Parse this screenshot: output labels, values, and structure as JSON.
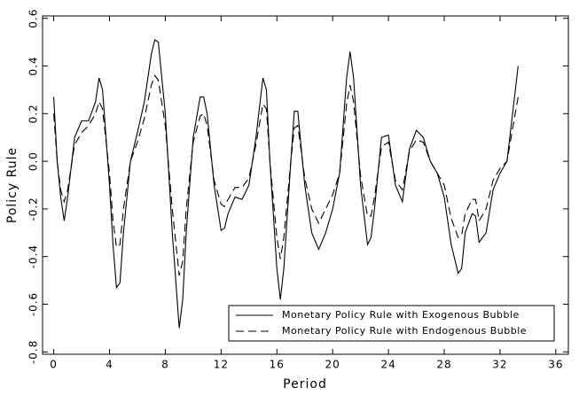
{
  "chart_data": {
    "type": "line",
    "xlabel": "Period",
    "ylabel": "Policy Rule",
    "x": [
      0,
      0.25,
      0.5,
      0.75,
      1,
      1.5,
      2,
      2.5,
      3,
      3.25,
      3.5,
      4,
      4.25,
      4.5,
      4.75,
      5,
      5.5,
      6,
      6.5,
      7,
      7.25,
      7.5,
      8,
      8.5,
      9,
      9.25,
      9.5,
      10,
      10.5,
      10.75,
      11,
      11.5,
      12,
      12.25,
      12.5,
      13,
      13.5,
      14,
      14.5,
      15,
      15.25,
      15.5,
      16,
      16.25,
      16.5,
      17,
      17.25,
      17.5,
      18,
      18.5,
      19,
      19.5,
      20,
      20.5,
      21,
      21.25,
      21.5,
      22,
      22.5,
      22.75,
      23,
      23.5,
      24,
      24.5,
      25,
      25.5,
      26,
      26.5,
      27,
      27.5,
      28,
      28.5,
      29,
      29.25,
      29.5,
      30,
      30.25,
      30.5,
      31,
      31.5,
      32,
      32.5,
      33,
      33.3
    ],
    "series": [
      {
        "name": "Monetary Policy Rule with Exogenous Bubble",
        "color": "#000000",
        "dash": "solid",
        "values": [
          0.27,
          0.0,
          -0.15,
          -0.25,
          -0.15,
          0.1,
          0.17,
          0.17,
          0.25,
          0.35,
          0.3,
          -0.1,
          -0.35,
          -0.53,
          -0.51,
          -0.3,
          0.0,
          0.12,
          0.25,
          0.45,
          0.51,
          0.5,
          0.2,
          -0.3,
          -0.7,
          -0.58,
          -0.3,
          0.1,
          0.27,
          0.27,
          0.2,
          -0.1,
          -0.29,
          -0.28,
          -0.22,
          -0.15,
          -0.16,
          -0.1,
          0.1,
          0.35,
          0.3,
          0.0,
          -0.45,
          -0.58,
          -0.45,
          0.0,
          0.21,
          0.21,
          -0.1,
          -0.3,
          -0.37,
          -0.3,
          -0.2,
          -0.05,
          0.35,
          0.46,
          0.35,
          -0.1,
          -0.35,
          -0.32,
          -0.2,
          0.1,
          0.11,
          -0.1,
          -0.17,
          0.05,
          0.13,
          0.1,
          0.0,
          -0.05,
          -0.15,
          -0.35,
          -0.47,
          -0.45,
          -0.3,
          -0.22,
          -0.23,
          -0.34,
          -0.3,
          -0.12,
          -0.05,
          0.0,
          0.25,
          0.4
        ]
      },
      {
        "name": "Monetary Policy Rule with Endogenous Bubble",
        "color": "#000000",
        "dash": "dashed",
        "values": [
          0.2,
          0.0,
          -0.12,
          -0.17,
          -0.12,
          0.07,
          0.12,
          0.15,
          0.2,
          0.25,
          0.22,
          -0.05,
          -0.25,
          -0.36,
          -0.35,
          -0.2,
          0.0,
          0.08,
          0.18,
          0.32,
          0.36,
          0.34,
          0.15,
          -0.2,
          -0.48,
          -0.42,
          -0.2,
          0.08,
          0.19,
          0.2,
          0.15,
          -0.08,
          -0.18,
          -0.19,
          -0.16,
          -0.11,
          -0.11,
          -0.07,
          0.07,
          0.24,
          0.22,
          0.0,
          -0.32,
          -0.41,
          -0.32,
          0.0,
          0.14,
          0.15,
          -0.07,
          -0.2,
          -0.26,
          -0.2,
          -0.14,
          -0.05,
          0.24,
          0.32,
          0.25,
          -0.06,
          -0.23,
          -0.23,
          -0.15,
          0.06,
          0.08,
          -0.08,
          -0.12,
          0.04,
          0.09,
          0.08,
          0.0,
          -0.05,
          -0.1,
          -0.24,
          -0.32,
          -0.31,
          -0.22,
          -0.16,
          -0.16,
          -0.25,
          -0.2,
          -0.08,
          -0.03,
          0.0,
          0.17,
          0.27
        ]
      }
    ],
    "xlim": [
      -0.8,
      36.9
    ],
    "xticks": [
      0,
      4,
      8,
      12,
      16,
      20,
      24,
      28,
      32,
      36
    ],
    "ylim": [
      -0.81,
      0.61
    ],
    "yticks": [
      -0.8,
      -0.6,
      -0.4,
      -0.2,
      {
        "value": 0,
        "label": "0.0"
      },
      0.2,
      0.4,
      0.6
    ],
    "legend": "lower right"
  }
}
